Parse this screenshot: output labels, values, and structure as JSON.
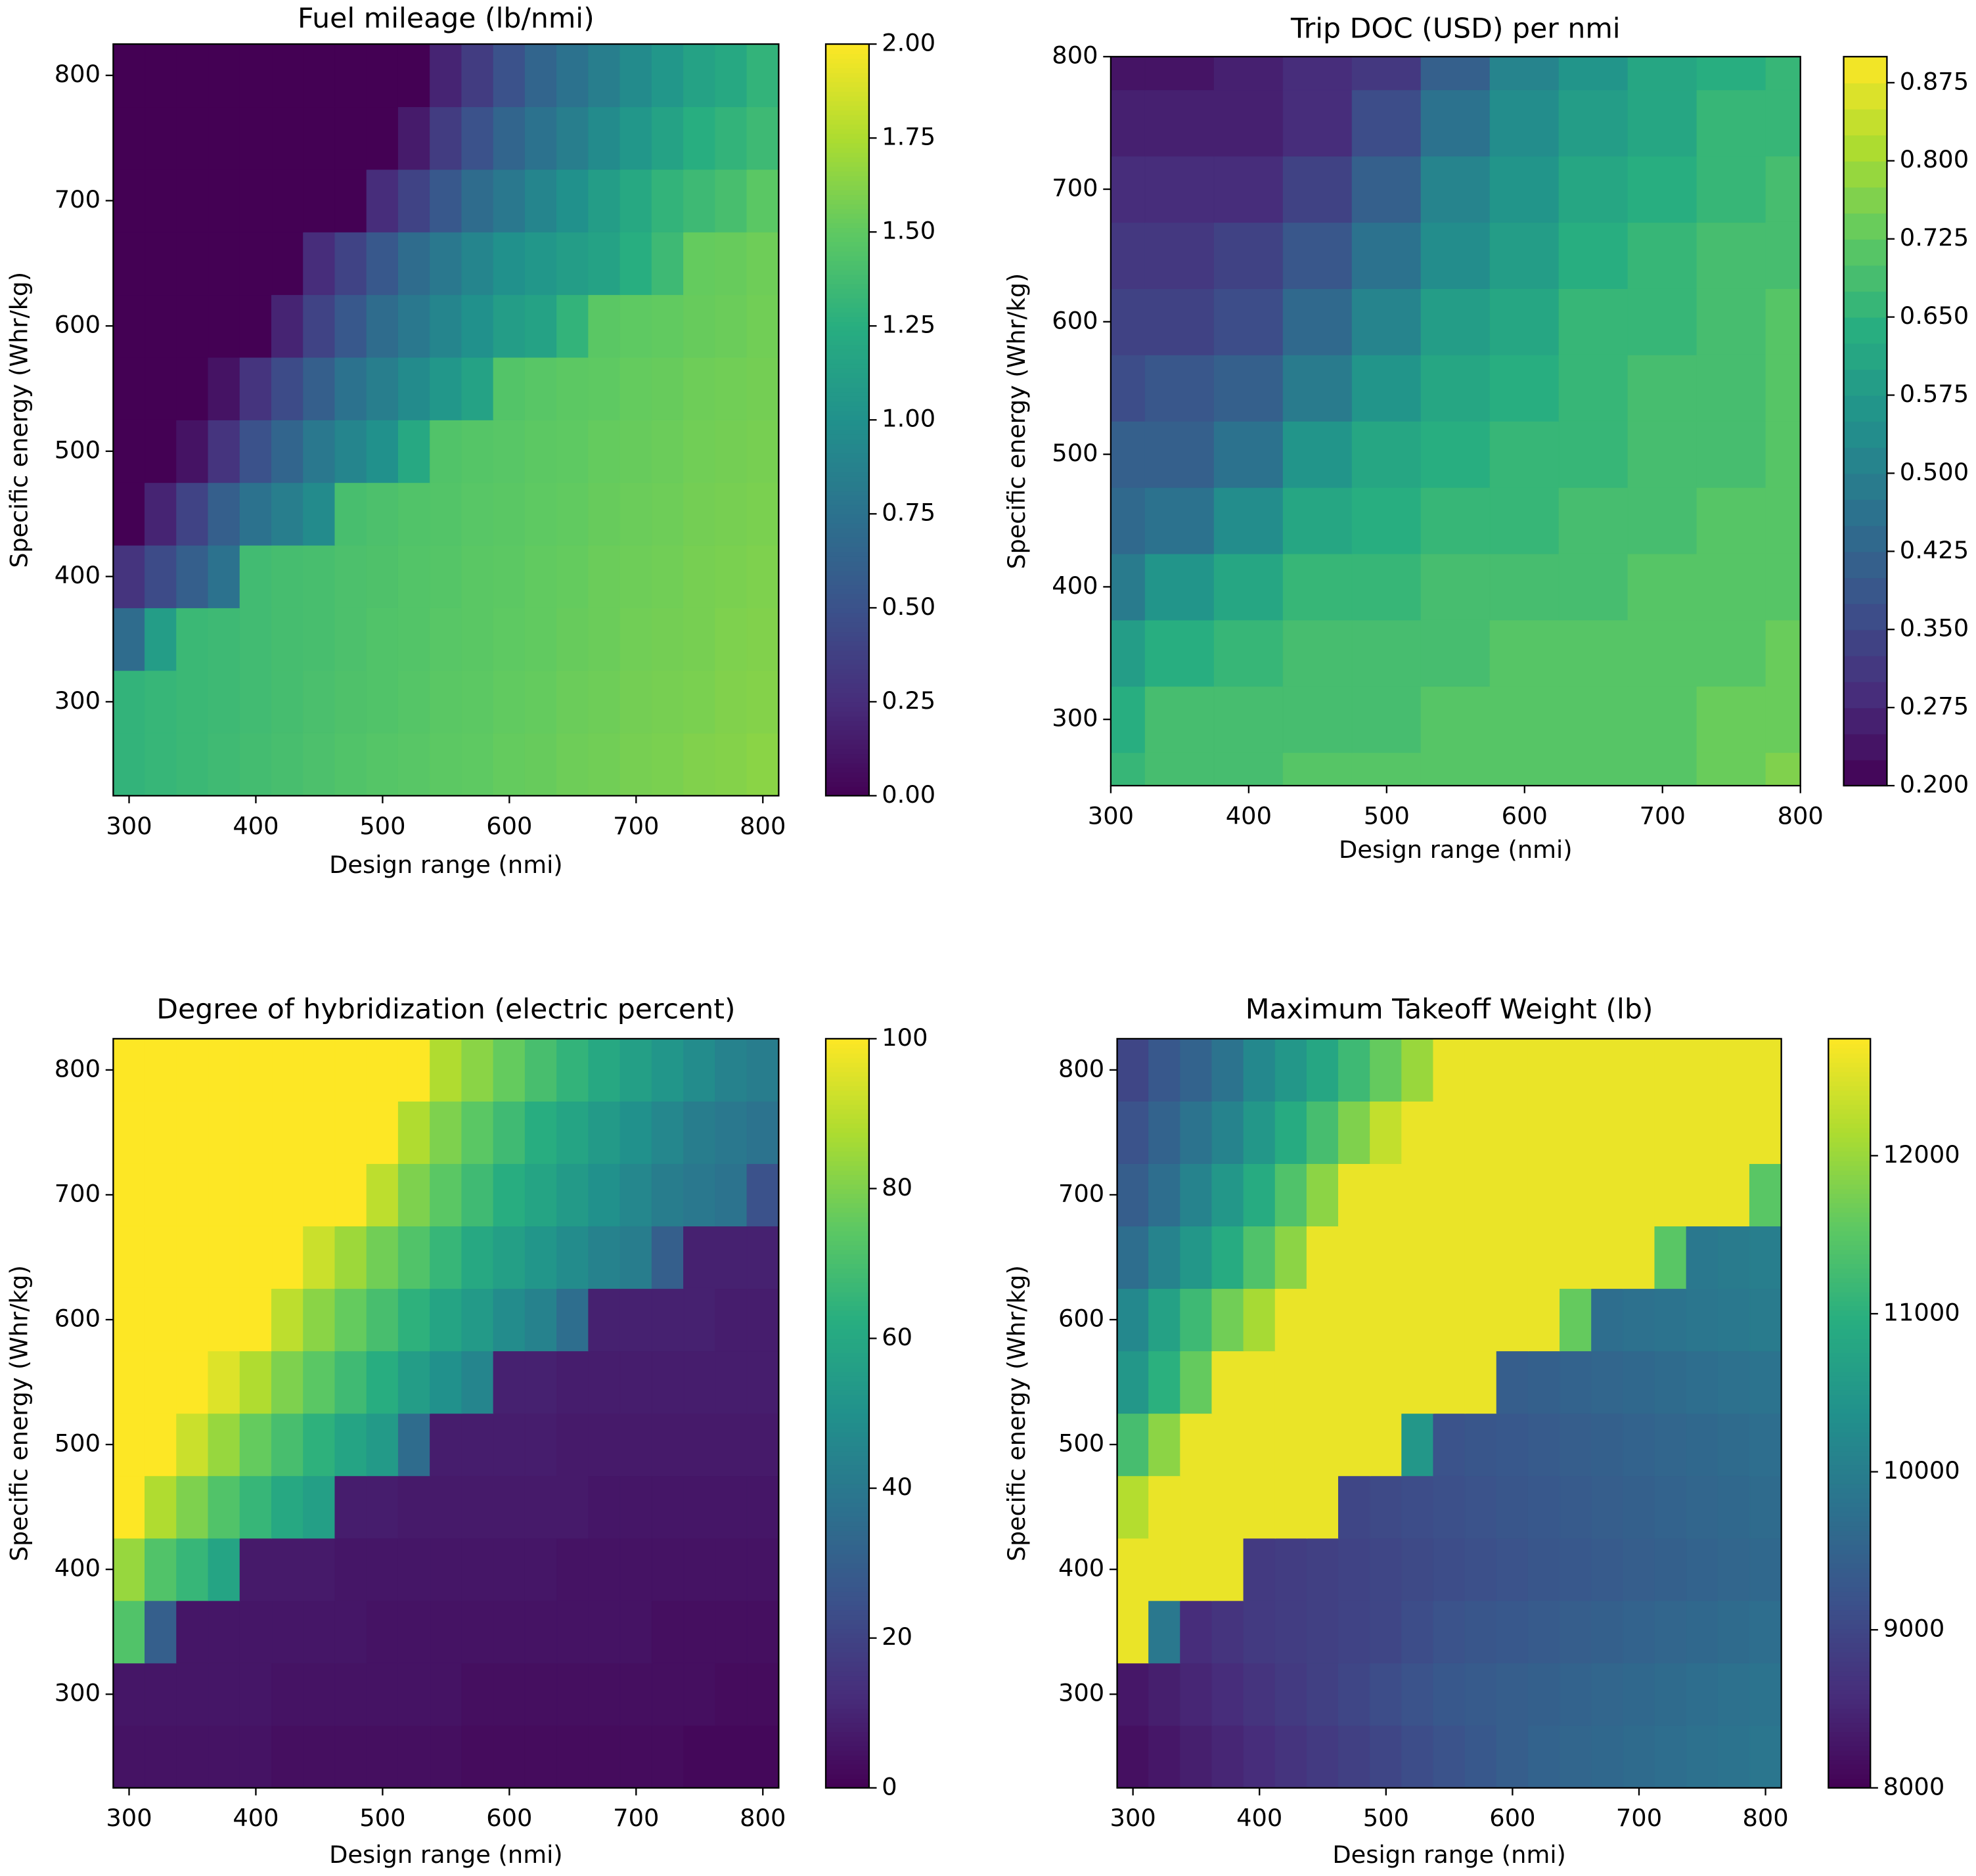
{
  "chart_data": [
    {
      "type": "heatmap",
      "title": "Fuel mileage (lb/nmi)",
      "xlabel": "Design range (nmi)",
      "ylabel": "Specific energy (Whr/kg)",
      "cmap": "viridis",
      "clim": [
        0,
        2
      ],
      "cticks": [
        {
          "value": 0,
          "label": "0.00"
        },
        0.25,
        {
          "value": 0.5,
          "label": "0.50"
        },
        0.75,
        {
          "value": 1,
          "label": "1.00"
        },
        1.25,
        {
          "value": 1.5,
          "label": "1.50"
        },
        1.75,
        {
          "value": 2,
          "label": "2.00"
        }
      ],
      "xlim": [
        287.5,
        812.5
      ],
      "ylim": [
        225,
        825
      ],
      "xticks": [
        300,
        400,
        500,
        600,
        700,
        800
      ],
      "yticks": [
        300,
        400,
        500,
        600,
        700,
        800
      ],
      "x": [
        300,
        325,
        350,
        375,
        400,
        425,
        450,
        475,
        500,
        525,
        550,
        575,
        600,
        625,
        650,
        675,
        700,
        725,
        750,
        775,
        800
      ],
      "y": [
        250,
        300,
        350,
        400,
        450,
        500,
        550,
        600,
        650,
        700,
        750,
        800
      ],
      "z": [
        [
          1.3,
          1.32,
          1.34,
          1.36,
          1.38,
          1.4,
          1.42,
          1.44,
          1.46,
          1.47,
          1.49,
          1.5,
          1.52,
          1.53,
          1.55,
          1.56,
          1.58,
          1.59,
          1.61,
          1.62,
          1.64
        ],
        [
          1.3,
          1.32,
          1.34,
          1.35,
          1.37,
          1.39,
          1.41,
          1.43,
          1.44,
          1.46,
          1.48,
          1.49,
          1.51,
          1.52,
          1.54,
          1.55,
          1.57,
          1.58,
          1.59,
          1.61,
          1.62
        ],
        [
          0.7,
          1.1,
          1.34,
          1.35,
          1.37,
          1.39,
          1.4,
          1.42,
          1.44,
          1.45,
          1.47,
          1.48,
          1.5,
          1.51,
          1.53,
          1.54,
          1.56,
          1.57,
          1.58,
          1.6,
          1.61
        ],
        [
          0.3,
          0.45,
          0.6,
          0.75,
          1.37,
          1.39,
          1.4,
          1.42,
          1.43,
          1.45,
          1.46,
          1.48,
          1.49,
          1.51,
          1.52,
          1.54,
          1.55,
          1.56,
          1.58,
          1.59,
          1.6
        ],
        [
          0,
          0.2,
          0.4,
          0.6,
          0.75,
          0.85,
          0.95,
          1.4,
          1.42,
          1.44,
          1.45,
          1.47,
          1.48,
          1.5,
          1.51,
          1.53,
          1.54,
          1.55,
          1.57,
          1.58,
          1.59
        ],
        [
          0,
          0,
          0.1,
          0.3,
          0.5,
          0.65,
          0.8,
          0.9,
          1.0,
          1.2,
          1.44,
          1.46,
          1.47,
          1.49,
          1.5,
          1.52,
          1.53,
          1.54,
          1.56,
          1.57,
          1.58
        ],
        [
          0,
          0,
          0,
          0.1,
          0.3,
          0.45,
          0.6,
          0.75,
          0.85,
          0.95,
          1.05,
          1.15,
          1.45,
          1.47,
          1.49,
          1.5,
          1.52,
          1.53,
          1.55,
          1.56,
          1.57
        ],
        [
          0,
          0,
          0,
          0,
          0,
          0.2,
          0.4,
          0.55,
          0.7,
          0.8,
          0.9,
          1.0,
          1.1,
          1.15,
          1.3,
          1.48,
          1.5,
          1.51,
          1.53,
          1.54,
          1.56
        ],
        [
          0,
          0,
          0,
          0,
          0,
          0,
          0.25,
          0.4,
          0.55,
          0.7,
          0.8,
          0.9,
          1.0,
          1.05,
          1.1,
          1.15,
          1.25,
          1.35,
          1.52,
          1.53,
          1.55
        ],
        [
          0,
          0,
          0,
          0,
          0,
          0,
          0,
          0,
          0.25,
          0.4,
          0.55,
          0.7,
          0.8,
          0.9,
          1.0,
          1.1,
          1.2,
          1.3,
          1.35,
          1.4,
          1.48
        ],
        [
          0,
          0,
          0,
          0,
          0,
          0,
          0,
          0,
          0,
          0.15,
          0.35,
          0.5,
          0.65,
          0.75,
          0.85,
          0.95,
          1.05,
          1.15,
          1.25,
          1.3,
          1.35
        ],
        [
          0,
          0,
          0,
          0,
          0,
          0,
          0,
          0,
          0,
          0,
          0.2,
          0.35,
          0.5,
          0.65,
          0.75,
          0.85,
          0.95,
          1.05,
          1.15,
          1.2,
          1.3
        ]
      ]
    },
    {
      "type": "contourf",
      "title": "Trip DOC (USD) per nmi",
      "xlabel": "Design range (nmi)",
      "ylabel": "Specific energy (Whr/kg)",
      "cmap": "viridis",
      "clim": [
        0.2,
        0.9
      ],
      "levels": 28,
      "cticks": [
        {
          "value": 0.2,
          "label": "0.200"
        },
        0.275,
        {
          "value": 0.35,
          "label": "0.350"
        },
        0.425,
        {
          "value": 0.5,
          "label": "0.500"
        },
        0.575,
        {
          "value": 0.65,
          "label": "0.650"
        },
        0.725,
        {
          "value": 0.8,
          "label": "0.800"
        },
        0.875
      ],
      "xlim": [
        300,
        800
      ],
      "ylim": [
        250,
        800
      ],
      "xticks": [
        300,
        400,
        500,
        600,
        700,
        800
      ],
      "yticks": [
        300,
        400,
        500,
        600,
        700,
        800
      ],
      "x": [
        300,
        350,
        400,
        450,
        500,
        550,
        600,
        650,
        700,
        750,
        800
      ],
      "y": [
        250,
        300,
        350,
        400,
        450,
        500,
        550,
        600,
        650,
        700,
        750,
        800
      ],
      "z": [
        [
          0.66,
          0.68,
          0.69,
          0.7,
          0.7,
          0.7,
          0.7,
          0.71,
          0.72,
          0.73,
          0.76
        ],
        [
          0.64,
          0.68,
          0.69,
          0.69,
          0.69,
          0.7,
          0.7,
          0.71,
          0.72,
          0.73,
          0.74
        ],
        [
          0.58,
          0.63,
          0.67,
          0.68,
          0.69,
          0.69,
          0.7,
          0.7,
          0.71,
          0.72,
          0.73
        ],
        [
          0.49,
          0.55,
          0.61,
          0.65,
          0.67,
          0.68,
          0.69,
          0.69,
          0.7,
          0.71,
          0.72
        ],
        [
          0.44,
          0.47,
          0.54,
          0.61,
          0.64,
          0.66,
          0.67,
          0.68,
          0.69,
          0.7,
          0.71
        ],
        [
          0.4,
          0.42,
          0.47,
          0.55,
          0.61,
          0.64,
          0.66,
          0.67,
          0.68,
          0.69,
          0.7
        ],
        [
          0.37,
          0.38,
          0.42,
          0.49,
          0.56,
          0.61,
          0.64,
          0.66,
          0.68,
          0.69,
          0.7
        ],
        [
          0.34,
          0.34,
          0.37,
          0.43,
          0.51,
          0.58,
          0.62,
          0.65,
          0.67,
          0.69,
          0.7
        ],
        [
          0.31,
          0.31,
          0.33,
          0.38,
          0.46,
          0.54,
          0.59,
          0.63,
          0.66,
          0.68,
          0.69
        ],
        [
          0.28,
          0.28,
          0.3,
          0.34,
          0.41,
          0.5,
          0.56,
          0.61,
          0.64,
          0.67,
          0.68
        ],
        [
          0.26,
          0.26,
          0.27,
          0.3,
          0.36,
          0.45,
          0.53,
          0.58,
          0.62,
          0.65,
          0.67
        ],
        [
          0.25,
          0.25,
          0.26,
          0.28,
          0.32,
          0.42,
          0.5,
          0.56,
          0.6,
          0.63,
          0.65
        ]
      ]
    },
    {
      "type": "heatmap",
      "title": "Degree of hybridization (electric percent)",
      "xlabel": "Design range (nmi)",
      "ylabel": "Specific energy (Whr/kg)",
      "cmap": "viridis",
      "clim": [
        0,
        100
      ],
      "cticks": [
        0,
        20,
        40,
        60,
        80,
        100
      ],
      "xlim": [
        287.5,
        812.5
      ],
      "ylim": [
        225,
        825
      ],
      "xticks": [
        300,
        400,
        500,
        600,
        700,
        800
      ],
      "yticks": [
        300,
        400,
        500,
        600,
        700,
        800
      ],
      "x": [
        300,
        325,
        350,
        375,
        400,
        425,
        450,
        475,
        500,
        525,
        550,
        575,
        600,
        625,
        650,
        675,
        700,
        725,
        750,
        775,
        800
      ],
      "y": [
        250,
        300,
        350,
        400,
        450,
        500,
        550,
        600,
        650,
        700,
        750,
        800
      ],
      "z": [
        [
          5,
          5,
          5,
          5,
          5,
          4,
          4,
          4,
          4,
          4,
          4,
          3,
          3,
          3,
          3,
          3,
          3,
          3,
          2,
          2,
          2
        ],
        [
          6,
          6,
          6,
          6,
          6,
          5,
          5,
          5,
          5,
          5,
          5,
          4,
          4,
          4,
          4,
          4,
          4,
          4,
          4,
          3,
          3
        ],
        [
          72,
          30,
          6,
          6,
          6,
          6,
          6,
          6,
          5,
          5,
          5,
          5,
          5,
          5,
          5,
          5,
          5,
          4,
          4,
          4,
          4
        ],
        [
          84,
          72,
          66,
          58,
          7,
          7,
          7,
          6,
          6,
          6,
          6,
          6,
          6,
          6,
          5,
          5,
          5,
          5,
          5,
          5,
          5
        ],
        [
          100,
          88,
          80,
          72,
          66,
          60,
          56,
          8,
          8,
          7,
          7,
          7,
          7,
          7,
          7,
          6,
          6,
          6,
          6,
          6,
          6
        ],
        [
          100,
          100,
          92,
          84,
          76,
          70,
          64,
          58,
          54,
          35,
          8,
          8,
          8,
          8,
          7,
          7,
          7,
          7,
          7,
          7,
          7
        ],
        [
          100,
          100,
          100,
          95,
          88,
          80,
          74,
          68,
          62,
          55,
          50,
          45,
          9,
          9,
          8,
          8,
          8,
          8,
          8,
          8,
          8
        ],
        [
          100,
          100,
          100,
          100,
          100,
          90,
          82,
          76,
          70,
          64,
          58,
          54,
          48,
          44,
          36,
          9,
          9,
          9,
          9,
          8,
          8
        ],
        [
          100,
          100,
          100,
          100,
          100,
          100,
          92,
          85,
          78,
          72,
          66,
          60,
          56,
          52,
          48,
          44,
          42,
          30,
          9,
          9,
          9
        ],
        [
          100,
          100,
          100,
          100,
          100,
          100,
          100,
          100,
          90,
          80,
          74,
          68,
          62,
          58,
          54,
          50,
          46,
          42,
          40,
          38,
          25
        ],
        [
          100,
          100,
          100,
          100,
          100,
          100,
          100,
          100,
          100,
          88,
          80,
          74,
          68,
          62,
          58,
          54,
          50,
          46,
          42,
          40,
          38
        ],
        [
          100,
          100,
          100,
          100,
          100,
          100,
          100,
          100,
          100,
          100,
          88,
          82,
          76,
          70,
          65,
          60,
          56,
          52,
          48,
          44,
          42
        ]
      ]
    },
    {
      "type": "heatmap",
      "title": "Maximum Takeoff Weight (lb)",
      "xlabel": "Design range (nmi)",
      "ylabel": "Specific energy (Whr/kg)",
      "cmap": "viridis",
      "clim": [
        8000,
        12740
      ],
      "cticks": [
        8000,
        9000,
        10000,
        11000,
        12000
      ],
      "xlim": [
        287.5,
        812.5
      ],
      "ylim": [
        225,
        825
      ],
      "xticks": [
        300,
        400,
        500,
        600,
        700,
        800
      ],
      "yticks": [
        300,
        400,
        500,
        600,
        700,
        800
      ],
      "x": [
        300,
        325,
        350,
        375,
        400,
        425,
        450,
        475,
        500,
        525,
        550,
        575,
        600,
        625,
        650,
        675,
        700,
        725,
        750,
        775,
        800
      ],
      "y": [
        250,
        300,
        350,
        400,
        450,
        500,
        550,
        600,
        650,
        700,
        750,
        800
      ],
      "z": [
        [
          8200,
          8300,
          8400,
          8500,
          8600,
          8700,
          8800,
          8900,
          9000,
          9100,
          9200,
          9300,
          9400,
          9500,
          9550,
          9600,
          9650,
          9700,
          9750,
          9800,
          9850
        ],
        [
          8300,
          8400,
          8500,
          8600,
          8700,
          8800,
          8900,
          9000,
          9100,
          9200,
          9300,
          9350,
          9400,
          9450,
          9500,
          9550,
          9600,
          9650,
          9700,
          9750,
          9800
        ],
        [
          12600,
          9900,
          8600,
          8700,
          8800,
          8850,
          8900,
          8950,
          9000,
          9100,
          9200,
          9250,
          9300,
          9350,
          9400,
          9450,
          9500,
          9550,
          9600,
          9650,
          9700
        ],
        [
          12600,
          12600,
          12600,
          12600,
          8800,
          8850,
          8900,
          8950,
          9000,
          9050,
          9100,
          9150,
          9200,
          9250,
          9300,
          9350,
          9400,
          9450,
          9500,
          9550,
          9600
        ],
        [
          12200,
          12600,
          12600,
          12600,
          12600,
          12600,
          12600,
          9000,
          9050,
          9100,
          9150,
          9200,
          9250,
          9300,
          9350,
          9400,
          9450,
          9500,
          9550,
          9600,
          9650
        ],
        [
          11300,
          11900,
          12600,
          12600,
          12600,
          12600,
          12600,
          12600,
          12600,
          10500,
          9200,
          9250,
          9300,
          9350,
          9400,
          9450,
          9500,
          9550,
          9600,
          9650,
          9700
        ],
        [
          10500,
          11000,
          11600,
          12600,
          12600,
          12600,
          12600,
          12600,
          12600,
          12600,
          12600,
          12600,
          9400,
          9450,
          9500,
          9550,
          9600,
          9650,
          9700,
          9750,
          9800
        ],
        [
          10200,
          10700,
          11200,
          11700,
          12100,
          12600,
          12600,
          12600,
          12600,
          12600,
          12600,
          12600,
          12600,
          12600,
          11600,
          9700,
          9750,
          9800,
          9850,
          9900,
          9950
        ],
        [
          9700,
          10100,
          10500,
          10900,
          11400,
          11900,
          12600,
          12600,
          12600,
          12600,
          12600,
          12600,
          12600,
          12600,
          12600,
          12600,
          12600,
          11500,
          9900,
          9950,
          10000
        ],
        [
          9400,
          9700,
          10100,
          10500,
          10900,
          11400,
          11900,
          12600,
          12600,
          12600,
          12600,
          12600,
          12600,
          12600,
          12600,
          12600,
          12600,
          12600,
          12600,
          12600,
          11500
        ],
        [
          9200,
          9500,
          9800,
          10100,
          10500,
          10900,
          11300,
          11800,
          12300,
          12600,
          12600,
          12600,
          12600,
          12600,
          12600,
          12600,
          12600,
          12600,
          12600,
          12600,
          12600
        ],
        [
          9000,
          9300,
          9500,
          9800,
          10200,
          10500,
          10800,
          11200,
          11600,
          12000,
          12600,
          12600,
          12600,
          12600,
          12600,
          12600,
          12600,
          12600,
          12600,
          12600,
          12600
        ]
      ]
    }
  ]
}
